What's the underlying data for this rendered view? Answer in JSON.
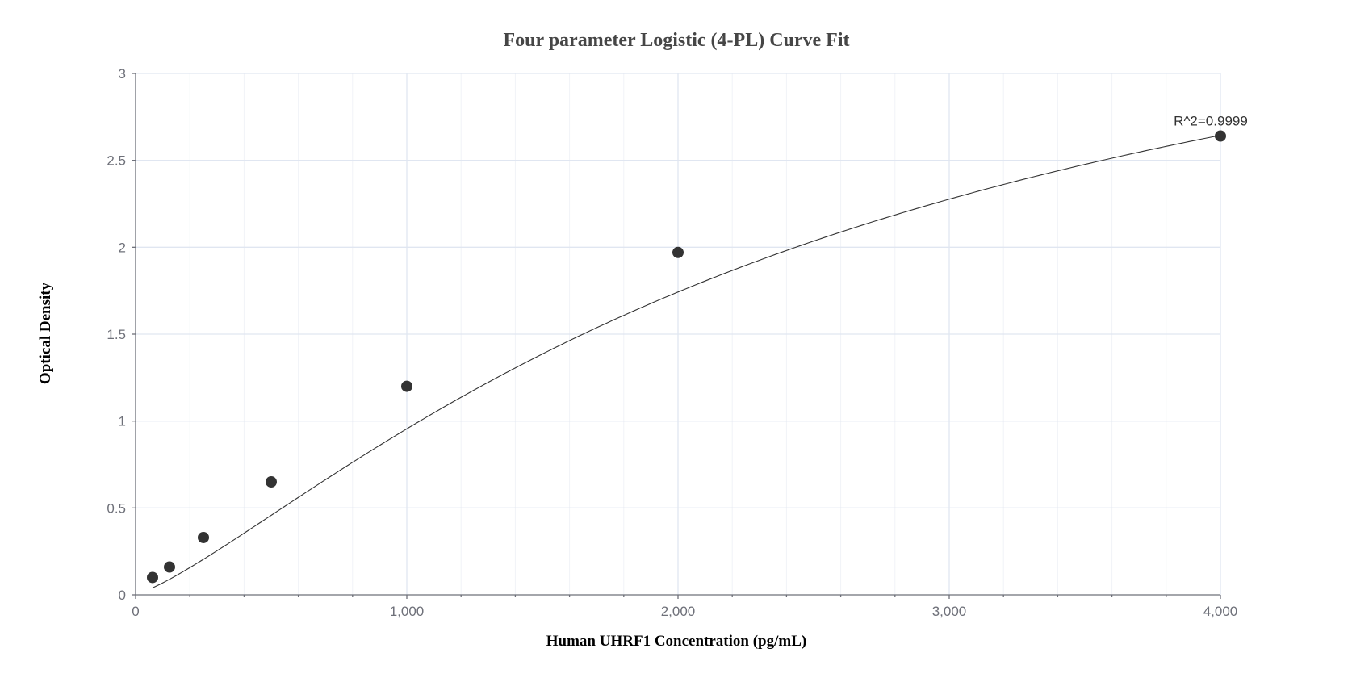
{
  "chart_data": {
    "type": "scatter",
    "title": "Four parameter Logistic (4-PL) Curve Fit",
    "xlabel": "Human UHRF1 Concentration (pg/mL)",
    "ylabel": "Optical Density",
    "xlim": [
      0,
      4000
    ],
    "ylim": [
      0,
      3
    ],
    "x_ticks": [
      "0",
      "1,000",
      "2,000",
      "3,000",
      "4,000"
    ],
    "y_ticks": [
      "0",
      "0.5",
      "1",
      "1.5",
      "2",
      "2.5",
      "3"
    ],
    "grid": true,
    "points": [
      {
        "x": 62.5,
        "y": 0.1
      },
      {
        "x": 125,
        "y": 0.16
      },
      {
        "x": 250,
        "y": 0.33
      },
      {
        "x": 500,
        "y": 0.65
      },
      {
        "x": 1000,
        "y": 1.2
      },
      {
        "x": 2000,
        "y": 1.97
      },
      {
        "x": 4000,
        "y": 2.64
      }
    ],
    "fit_curve": {
      "model": "4-PL",
      "a": 0.0046,
      "b": 1.2774,
      "c": 2587,
      "d": 4.157
    },
    "annotation": "R^2=0.9999",
    "colors": {
      "points": "#333333",
      "curve": "#333333",
      "grid": "#e0e6f1",
      "axis": "#6e7079"
    }
  }
}
